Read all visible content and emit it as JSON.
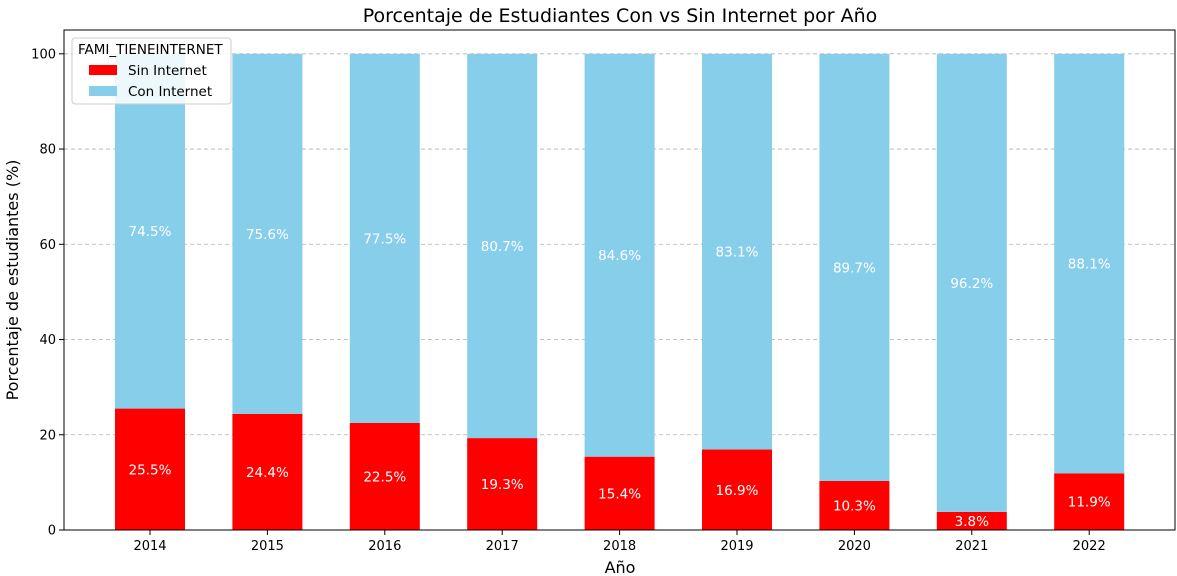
{
  "chart_data": {
    "type": "bar",
    "stacked": true,
    "title": "Porcentaje de Estudiantes Con vs Sin Internet por Año",
    "xlabel": "Año",
    "ylabel": "Porcentaje de estudiantes (%)",
    "categories": [
      "2014",
      "2015",
      "2016",
      "2017",
      "2018",
      "2019",
      "2020",
      "2021",
      "2022"
    ],
    "series": [
      {
        "name": "Sin Internet",
        "color": "#ff0000",
        "values": [
          25.5,
          24.4,
          22.5,
          19.3,
          15.4,
          16.9,
          10.3,
          3.8,
          11.9
        ],
        "labels": [
          "25.5%",
          "24.4%",
          "22.5%",
          "19.3%",
          "15.4%",
          "16.9%",
          "10.3%",
          "3.8%",
          "11.9%"
        ]
      },
      {
        "name": "Con Internet",
        "color": "#87ceeb",
        "values": [
          74.5,
          75.6,
          77.5,
          80.7,
          84.6,
          83.1,
          89.7,
          96.2,
          88.1
        ],
        "labels": [
          "74.5%",
          "75.6%",
          "77.5%",
          "80.7%",
          "84.6%",
          "83.1%",
          "89.7%",
          "96.2%",
          "88.1%"
        ]
      }
    ],
    "ylim": [
      0,
      105
    ],
    "yticks": [
      0,
      20,
      40,
      60,
      80,
      100
    ],
    "grid": "y-dashed",
    "legend": {
      "title": "FAMI_TIENEINTERNET",
      "position": "upper-left"
    }
  }
}
